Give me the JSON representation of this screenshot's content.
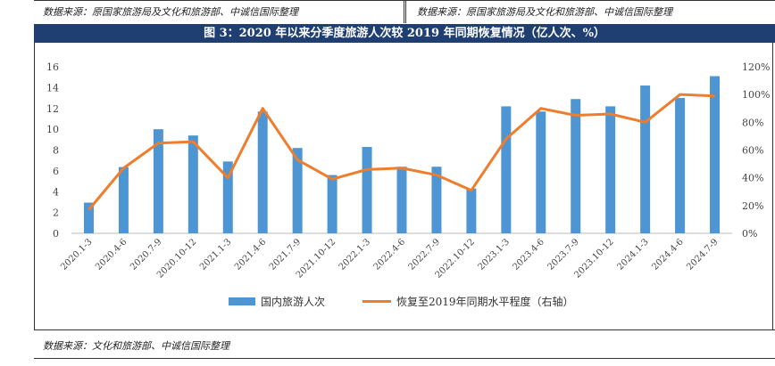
{
  "header": {
    "source_left": "数据来源：原国家旅游局及文化和旅游部、中诚信国际整理",
    "source_right": "数据来源：原国家旅游局及文化和旅游部、中诚信国际整理",
    "figure_title": "图 3：2020 年以来分季度旅游人次较 2019 年同期恢复情况（亿人次、%）"
  },
  "footer": {
    "source": "数据来源：文化和旅游部、中诚信国际整理"
  },
  "colors": {
    "bar": "#4e95d3",
    "line": "#ef7d2c",
    "title_bg": "#1f3f73"
  },
  "chart_data": {
    "type": "bar",
    "categories": [
      "2020.1-3",
      "2020.4-6",
      "2020.7-9",
      "2020.10-12",
      "2021.1-3",
      "2021.4-6",
      "2021.7-9",
      "2021.10-12",
      "2022.1-3",
      "2022.4-6",
      "2022.7-9",
      "2022.10-12",
      "2023.1-3",
      "2023.4-6",
      "2023.7-9",
      "2023.10-12",
      "2024.1-3",
      "2024.4-6",
      "2024.7-9"
    ],
    "series": [
      {
        "name": "国内旅游人次",
        "type": "bar",
        "axis": "left",
        "values": [
          2.95,
          6.37,
          10.0,
          9.4,
          6.9,
          11.7,
          8.2,
          5.6,
          8.3,
          6.4,
          6.4,
          4.3,
          12.2,
          11.7,
          12.9,
          12.2,
          14.2,
          13.0,
          15.1
        ]
      },
      {
        "name": "恢复至2019年同期水平程度（右轴）",
        "type": "line",
        "axis": "right",
        "values": [
          17,
          47,
          65,
          66,
          40,
          90,
          53,
          39,
          46,
          47,
          42,
          31,
          68,
          90,
          85,
          86,
          80,
          100,
          99
        ]
      }
    ],
    "y_left": {
      "min": 0,
      "max": 16,
      "ticks": [
        "0",
        "2",
        "4",
        "6",
        "8",
        "10",
        "12",
        "14",
        "16"
      ]
    },
    "y_right": {
      "min": 0,
      "max": 120,
      "ticks": [
        "0%",
        "20%",
        "40%",
        "60%",
        "80%",
        "100%",
        "120%"
      ]
    },
    "grid": false,
    "legend_position": "bottom"
  }
}
